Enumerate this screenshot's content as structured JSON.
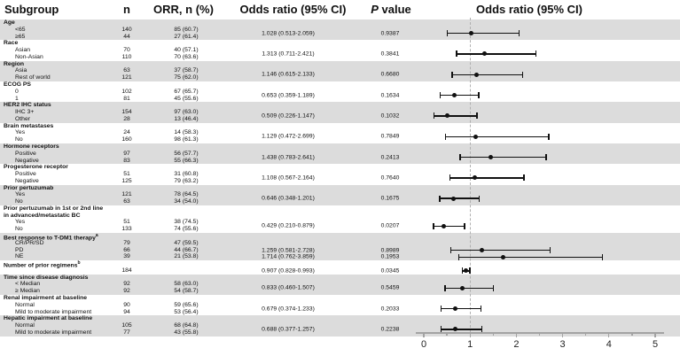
{
  "header": {
    "subgroup": "Subgroup",
    "n": "n",
    "orr": "ORR, n (%)",
    "or_ci": "Odds ratio (95% CI)",
    "p_italic": "P",
    "p_rest": " value",
    "plot_title": "Odds ratio (95% CI)"
  },
  "chart_data": {
    "type": "forest",
    "title": "Odds ratio (95% CI)",
    "x_axis": {
      "min": 0,
      "max": 5,
      "major_ticks": [
        0,
        1,
        2,
        3,
        4,
        5
      ],
      "minor_tick_step": 0.5,
      "reference_line": 1.0
    },
    "colors": {
      "band_shaded": "#dcdcdc",
      "band_plain": "#ffffff",
      "marker": "#111111",
      "axis": "#a3a3a3",
      "reference_dash": "#b0b0b0"
    },
    "blocks": [
      {
        "label": "Age",
        "label2": "",
        "note": "",
        "shaded": true,
        "items": [
          {
            "label": "<65",
            "n": "140",
            "orr": "85 (60.7)"
          },
          {
            "label": "≥65",
            "n": "44",
            "orr": "27 (61.4)"
          }
        ],
        "entries": [
          {
            "or_text": "1.028 (0.513-2.059)",
            "p": "0.9387",
            "or": 1.028,
            "lo": 0.513,
            "hi": 2.059,
            "align_item": null
          }
        ]
      },
      {
        "label": "Race",
        "label2": "",
        "note": "",
        "shaded": false,
        "items": [
          {
            "label": "Asian",
            "n": "70",
            "orr": "40 (57.1)"
          },
          {
            "label": "Non-Asian",
            "n": "110",
            "orr": "70 (63.6)"
          }
        ],
        "entries": [
          {
            "or_text": "1.313 (0.711-2.421)",
            "p": "0.3841",
            "or": 1.313,
            "lo": 0.711,
            "hi": 2.421,
            "align_item": null
          }
        ]
      },
      {
        "label": "Region",
        "label2": "",
        "note": "",
        "shaded": true,
        "items": [
          {
            "label": "Asia",
            "n": "63",
            "orr": "37 (58.7)"
          },
          {
            "label": "Rest of world",
            "n": "121",
            "orr": "75 (62.0)"
          }
        ],
        "entries": [
          {
            "or_text": "1.146 (0.615-2.133)",
            "p": "0.6680",
            "or": 1.146,
            "lo": 0.615,
            "hi": 2.133,
            "align_item": null
          }
        ]
      },
      {
        "label": "ECOG PS",
        "label2": "",
        "note": "",
        "shaded": false,
        "items": [
          {
            "label": "0",
            "n": "102",
            "orr": "67 (65.7)"
          },
          {
            "label": "1",
            "n": "81",
            "orr": "45 (55.6)"
          }
        ],
        "entries": [
          {
            "or_text": "0.653 (0.359-1.189)",
            "p": "0.1634",
            "or": 0.653,
            "lo": 0.359,
            "hi": 1.189,
            "align_item": null
          }
        ]
      },
      {
        "label": "HER2 IHC status",
        "label2": "",
        "note": "",
        "shaded": true,
        "items": [
          {
            "label": "IHC 3+",
            "n": "154",
            "orr": "97 (63.0)"
          },
          {
            "label": "Other",
            "n": "28",
            "orr": "13 (46.4)"
          }
        ],
        "entries": [
          {
            "or_text": "0.509 (0.226-1.147)",
            "p": "0.1032",
            "or": 0.509,
            "lo": 0.226,
            "hi": 1.147,
            "align_item": null
          }
        ]
      },
      {
        "label": "Brain metastases",
        "label2": "",
        "note": "",
        "shaded": false,
        "items": [
          {
            "label": "Yes",
            "n": "24",
            "orr": "14 (58.3)"
          },
          {
            "label": "No",
            "n": "160",
            "orr": "98 (61.3)"
          }
        ],
        "entries": [
          {
            "or_text": "1.129 (0.472-2.699)",
            "p": "0.7849",
            "or": 1.129,
            "lo": 0.472,
            "hi": 2.699,
            "align_item": null
          }
        ]
      },
      {
        "label": "Hormone receptors",
        "label2": "",
        "note": "",
        "shaded": true,
        "items": [
          {
            "label": "Positive",
            "n": "97",
            "orr": "56 (57.7)"
          },
          {
            "label": "Negative",
            "n": "83",
            "orr": "55 (66.3)"
          }
        ],
        "entries": [
          {
            "or_text": "1.438 (0.783-2.641)",
            "p": "0.2413",
            "or": 1.438,
            "lo": 0.783,
            "hi": 2.641,
            "align_item": null
          }
        ]
      },
      {
        "label": "Progesterone receptor",
        "label2": "",
        "note": "",
        "shaded": false,
        "items": [
          {
            "label": "Positive",
            "n": "51",
            "orr": "31 (60.8)"
          },
          {
            "label": "Negative",
            "n": "125",
            "orr": "79 (63.2)"
          }
        ],
        "entries": [
          {
            "or_text": "1.108 (0.567-2.164)",
            "p": "0.7640",
            "or": 1.108,
            "lo": 0.567,
            "hi": 2.164,
            "align_item": null
          }
        ]
      },
      {
        "label": "Prior pertuzumab",
        "label2": "",
        "note": "",
        "shaded": true,
        "items": [
          {
            "label": "Yes",
            "n": "121",
            "orr": "78 (64.5)"
          },
          {
            "label": "No",
            "n": "63",
            "orr": "34 (54.0)"
          }
        ],
        "entries": [
          {
            "or_text": "0.646 (0.348-1.201)",
            "p": "0.1675",
            "or": 0.646,
            "lo": 0.348,
            "hi": 1.201,
            "align_item": null
          }
        ]
      },
      {
        "label": "Prior pertuzumab in 1st or 2nd line",
        "label2": "in advanced/metastatic BC",
        "note": "",
        "shaded": false,
        "items": [
          {
            "label": "Yes",
            "n": "51",
            "orr": "38 (74.5)"
          },
          {
            "label": "No",
            "n": "133",
            "orr": "74 (55.6)"
          }
        ],
        "entries": [
          {
            "or_text": "0.429 (0.210-0.879)",
            "p": "0.0207",
            "or": 0.429,
            "lo": 0.21,
            "hi": 0.879,
            "align_item": null
          }
        ]
      },
      {
        "label": "Best response to T-DM1 therapy",
        "label2": "",
        "note": "a",
        "shaded": true,
        "items": [
          {
            "label": "CR/PR/SD",
            "n": "79",
            "orr": "47 (59.5)"
          },
          {
            "label": "PD",
            "n": "66",
            "orr": "44 (66.7)"
          },
          {
            "label": "NE",
            "n": "39",
            "orr": "21 (53.8)"
          }
        ],
        "entries": [
          {
            "or_text": "1.259 (0.581-2.728)",
            "p": "0.8989",
            "or": 1.259,
            "lo": 0.581,
            "hi": 2.728,
            "align_item": 1
          },
          {
            "or_text": "1.714 (0.762-3.859)",
            "p": "0.1953",
            "or": 1.714,
            "lo": 0.762,
            "hi": 3.859,
            "align_item": 2
          }
        ]
      },
      {
        "label": "Number of prior regimens",
        "label2": "",
        "note": "b",
        "shaded": false,
        "items": [
          {
            "label": "",
            "n": "184",
            "orr": ""
          }
        ],
        "entries": [
          {
            "or_text": "0.907 (0.828-0.993)",
            "p": "0.0345",
            "or": 0.907,
            "lo": 0.828,
            "hi": 0.993,
            "align_item": 0
          }
        ]
      },
      {
        "label": "Time since disease diagnosis",
        "label2": "",
        "note": "",
        "shaded": true,
        "items": [
          {
            "label": "< Median",
            "n": "92",
            "orr": "58 (63.0)"
          },
          {
            "label": "≥ Median",
            "n": "92",
            "orr": "54 (58.7)"
          }
        ],
        "entries": [
          {
            "or_text": "0.833 (0.460-1.507)",
            "p": "0.5459",
            "or": 0.833,
            "lo": 0.46,
            "hi": 1.507,
            "align_item": null
          }
        ]
      },
      {
        "label": "Renal impairment at baseline",
        "label2": "",
        "note": "",
        "shaded": false,
        "items": [
          {
            "label": "Normal",
            "n": "90",
            "orr": "59 (65.6)"
          },
          {
            "label": "Mild to moderate impairment",
            "n": "94",
            "orr": "53 (56.4)"
          }
        ],
        "entries": [
          {
            "or_text": "0.679 (0.374-1.233)",
            "p": "0.2033",
            "or": 0.679,
            "lo": 0.374,
            "hi": 1.233,
            "align_item": null
          }
        ]
      },
      {
        "label": "Hepatic impairment at baseline",
        "label2": "",
        "note": "",
        "shaded": true,
        "items": [
          {
            "label": "Normal",
            "n": "105",
            "orr": "68 (64.8)"
          },
          {
            "label": "Mild to moderate impairment",
            "n": "77",
            "orr": "43 (55.8)"
          }
        ],
        "entries": [
          {
            "or_text": "0.688 (0.377-1.257)",
            "p": "0.2238",
            "or": 0.688,
            "lo": 0.377,
            "hi": 1.257,
            "align_item": null
          }
        ]
      }
    ]
  }
}
